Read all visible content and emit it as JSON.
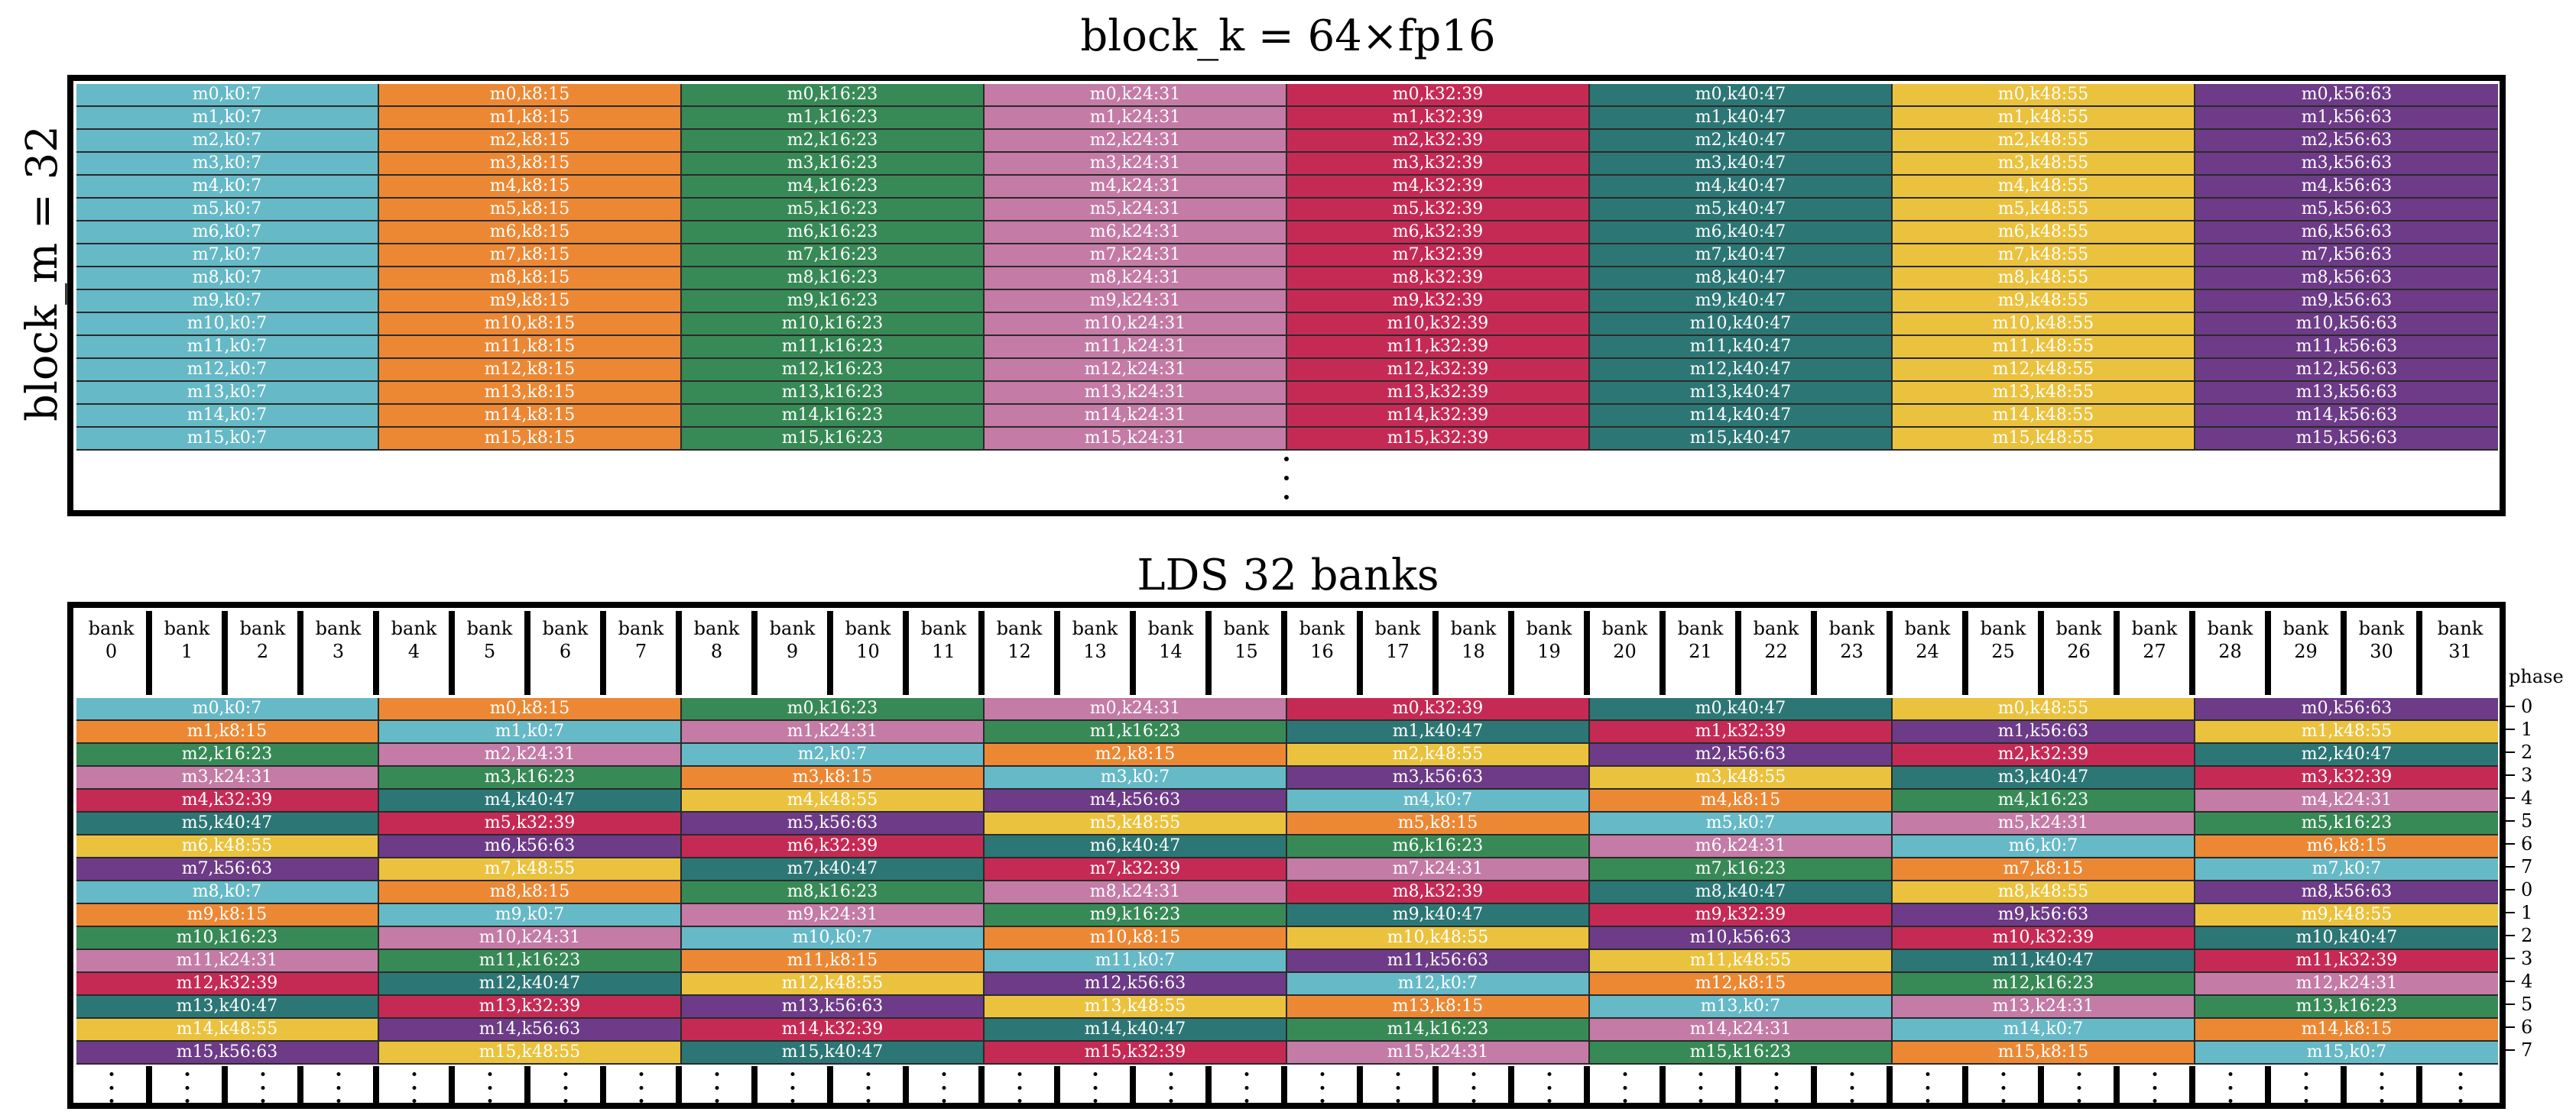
{
  "top_title": "block_k = 64×fp16",
  "side_label": "block_m = 32",
  "bottom_title": "LDS 32 banks",
  "bank_word": "bank",
  "bank_numbers": [
    "0",
    "1",
    "2",
    "3",
    "4",
    "5",
    "6",
    "7",
    "8",
    "9",
    "10",
    "11",
    "12",
    "13",
    "14",
    "15",
    "16",
    "17",
    "18",
    "19",
    "20",
    "21",
    "22",
    "23",
    "24",
    "25",
    "26",
    "27",
    "28",
    "29",
    "30",
    "31"
  ],
  "phase_label": "phase",
  "phases": [
    "0",
    "1",
    "2",
    "3",
    "4",
    "5",
    "6",
    "7",
    "0",
    "1",
    "2",
    "3",
    "4",
    "5",
    "6",
    "7"
  ],
  "k_ranges": [
    "k0:7",
    "k8:15",
    "k16:23",
    "k24:31",
    "k32:39",
    "k40:47",
    "k48:55",
    "k56:63"
  ],
  "rows": [
    "m0",
    "m1",
    "m2",
    "m3",
    "m4",
    "m5",
    "m6",
    "m7",
    "m8",
    "m9",
    "m10",
    "m11",
    "m12",
    "m13",
    "m14",
    "m15"
  ],
  "colors": {
    "k0:7": "#66b9c6",
    "k8:15": "#ec8834",
    "k16:23": "#378a56",
    "k24:31": "#c47ba6",
    "k32:39": "#c52a55",
    "k40:47": "#2c7775",
    "k48:55": "#ebc23e",
    "k56:63": "#6d3b87"
  },
  "top_cells": [
    [
      "m0,k0:7",
      "m0,k8:15",
      "m0,k16:23",
      "m0,k24:31",
      "m0,k32:39",
      "m0,k40:47",
      "m0,k48:55",
      "m0,k56:63"
    ],
    [
      "m1,k0:7",
      "m1,k8:15",
      "m1,k16:23",
      "m1,k24:31",
      "m1,k32:39",
      "m1,k40:47",
      "m1,k48:55",
      "m1,k56:63"
    ],
    [
      "m2,k0:7",
      "m2,k8:15",
      "m2,k16:23",
      "m2,k24:31",
      "m2,k32:39",
      "m2,k40:47",
      "m2,k48:55",
      "m2,k56:63"
    ],
    [
      "m3,k0:7",
      "m3,k8:15",
      "m3,k16:23",
      "m3,k24:31",
      "m3,k32:39",
      "m3,k40:47",
      "m3,k48:55",
      "m3,k56:63"
    ],
    [
      "m4,k0:7",
      "m4,k8:15",
      "m4,k16:23",
      "m4,k24:31",
      "m4,k32:39",
      "m4,k40:47",
      "m4,k48:55",
      "m4,k56:63"
    ],
    [
      "m5,k0:7",
      "m5,k8:15",
      "m5,k16:23",
      "m5,k24:31",
      "m5,k32:39",
      "m5,k40:47",
      "m5,k48:55",
      "m5,k56:63"
    ],
    [
      "m6,k0:7",
      "m6,k8:15",
      "m6,k16:23",
      "m6,k24:31",
      "m6,k32:39",
      "m6,k40:47",
      "m6,k48:55",
      "m6,k56:63"
    ],
    [
      "m7,k0:7",
      "m7,k8:15",
      "m7,k16:23",
      "m7,k24:31",
      "m7,k32:39",
      "m7,k40:47",
      "m7,k48:55",
      "m7,k56:63"
    ],
    [
      "m8,k0:7",
      "m8,k8:15",
      "m8,k16:23",
      "m8,k24:31",
      "m8,k32:39",
      "m8,k40:47",
      "m8,k48:55",
      "m8,k56:63"
    ],
    [
      "m9,k0:7",
      "m9,k8:15",
      "m9,k16:23",
      "m9,k24:31",
      "m9,k32:39",
      "m9,k40:47",
      "m9,k48:55",
      "m9,k56:63"
    ],
    [
      "m10,k0:7",
      "m10,k8:15",
      "m10,k16:23",
      "m10,k24:31",
      "m10,k32:39",
      "m10,k40:47",
      "m10,k48:55",
      "m10,k56:63"
    ],
    [
      "m11,k0:7",
      "m11,k8:15",
      "m11,k16:23",
      "m11,k24:31",
      "m11,k32:39",
      "m11,k40:47",
      "m11,k48:55",
      "m11,k56:63"
    ],
    [
      "m12,k0:7",
      "m12,k8:15",
      "m12,k16:23",
      "m12,k24:31",
      "m12,k32:39",
      "m12,k40:47",
      "m12,k48:55",
      "m12,k56:63"
    ],
    [
      "m13,k0:7",
      "m13,k8:15",
      "m13,k16:23",
      "m13,k24:31",
      "m13,k32:39",
      "m13,k40:47",
      "m13,k48:55",
      "m13,k56:63"
    ],
    [
      "m14,k0:7",
      "m14,k8:15",
      "m14,k16:23",
      "m14,k24:31",
      "m14,k32:39",
      "m14,k40:47",
      "m14,k48:55",
      "m14,k56:63"
    ],
    [
      "m15,k0:7",
      "m15,k8:15",
      "m15,k16:23",
      "m15,k24:31",
      "m15,k32:39",
      "m15,k40:47",
      "m15,k48:55",
      "m15,k56:63"
    ]
  ],
  "lds_cells": [
    [
      "m0,k0:7",
      "m0,k8:15",
      "m0,k16:23",
      "m0,k24:31",
      "m0,k32:39",
      "m0,k40:47",
      "m0,k48:55",
      "m0,k56:63"
    ],
    [
      "m1,k8:15",
      "m1,k0:7",
      "m1,k24:31",
      "m1,k16:23",
      "m1,k40:47",
      "m1,k32:39",
      "m1,k56:63",
      "m1,k48:55"
    ],
    [
      "m2,k16:23",
      "m2,k24:31",
      "m2,k0:7",
      "m2,k8:15",
      "m2,k48:55",
      "m2,k56:63",
      "m2,k32:39",
      "m2,k40:47"
    ],
    [
      "m3,k24:31",
      "m3,k16:23",
      "m3,k8:15",
      "m3,k0:7",
      "m3,k56:63",
      "m3,k48:55",
      "m3,k40:47",
      "m3,k32:39"
    ],
    [
      "m4,k32:39",
      "m4,k40:47",
      "m4,k48:55",
      "m4,k56:63",
      "m4,k0:7",
      "m4,k8:15",
      "m4,k16:23",
      "m4,k24:31"
    ],
    [
      "m5,k40:47",
      "m5,k32:39",
      "m5,k56:63",
      "m5,k48:55",
      "m5,k8:15",
      "m5,k0:7",
      "m5,k24:31",
      "m5,k16:23"
    ],
    [
      "m6,k48:55",
      "m6,k56:63",
      "m6,k32:39",
      "m6,k40:47",
      "m6,k16:23",
      "m6,k24:31",
      "m6,k0:7",
      "m6,k8:15"
    ],
    [
      "m7,k56:63",
      "m7,k48:55",
      "m7,k40:47",
      "m7,k32:39",
      "m7,k24:31",
      "m7,k16:23",
      "m7,k8:15",
      "m7,k0:7"
    ],
    [
      "m8,k0:7",
      "m8,k8:15",
      "m8,k16:23",
      "m8,k24:31",
      "m8,k32:39",
      "m8,k40:47",
      "m8,k48:55",
      "m8,k56:63"
    ],
    [
      "m9,k8:15",
      "m9,k0:7",
      "m9,k24:31",
      "m9,k16:23",
      "m9,k40:47",
      "m9,k32:39",
      "m9,k56:63",
      "m9,k48:55"
    ],
    [
      "m10,k16:23",
      "m10,k24:31",
      "m10,k0:7",
      "m10,k8:15",
      "m10,k48:55",
      "m10,k56:63",
      "m10,k32:39",
      "m10,k40:47"
    ],
    [
      "m11,k24:31",
      "m11,k16:23",
      "m11,k8:15",
      "m11,k0:7",
      "m11,k56:63",
      "m11,k48:55",
      "m11,k40:47",
      "m11,k32:39"
    ],
    [
      "m12,k32:39",
      "m12,k40:47",
      "m12,k48:55",
      "m12,k56:63",
      "m12,k0:7",
      "m12,k8:15",
      "m12,k16:23",
      "m12,k24:31"
    ],
    [
      "m13,k40:47",
      "m13,k32:39",
      "m13,k56:63",
      "m13,k48:55",
      "m13,k8:15",
      "m13,k0:7",
      "m13,k24:31",
      "m13,k16:23"
    ],
    [
      "m14,k48:55",
      "m14,k56:63",
      "m14,k32:39",
      "m14,k40:47",
      "m14,k16:23",
      "m14,k24:31",
      "m14,k0:7",
      "m14,k8:15"
    ],
    [
      "m15,k56:63",
      "m15,k48:55",
      "m15,k40:47",
      "m15,k32:39",
      "m15,k24:31",
      "m15,k16:23",
      "m15,k8:15",
      "m15,k0:7"
    ]
  ]
}
